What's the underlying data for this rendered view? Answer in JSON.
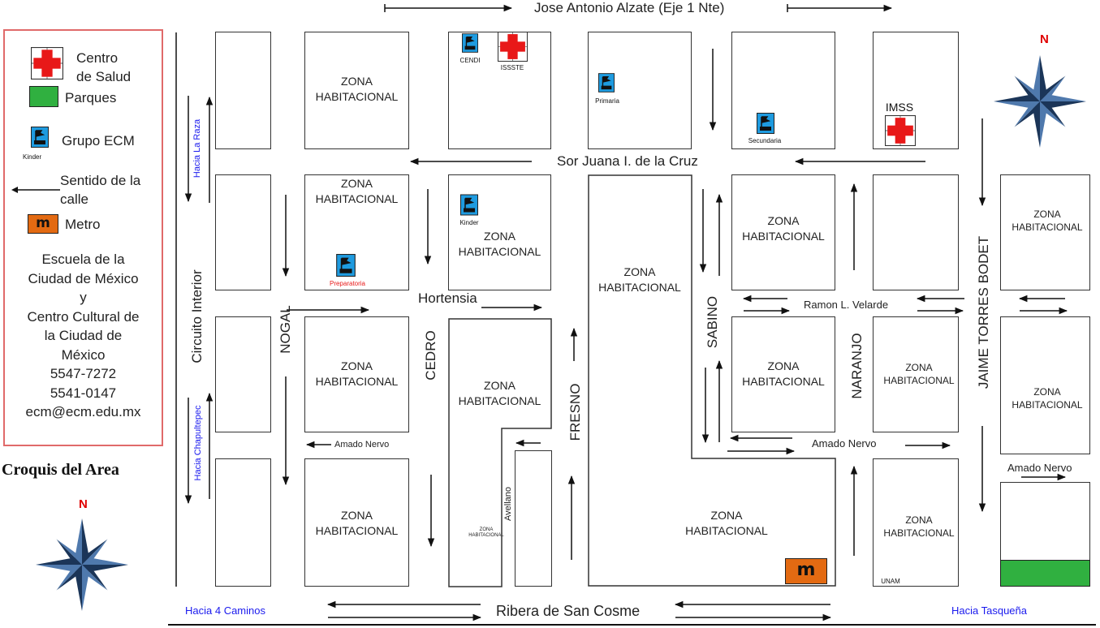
{
  "legend": {
    "health_center": "Centro\nde Salud",
    "parks": "Parques",
    "ecm_group": "Grupo ECM",
    "ecm_icon_caption": "Kinder",
    "street_direction": "Sentido de la\ncalle",
    "metro_label": "Metro",
    "metro_glyph": "m",
    "info": [
      "Escuela de la",
      "Ciudad de México",
      "y",
      "Centro Cultural de",
      "la Ciudad de",
      "México",
      "5547-7272",
      "5541-0147",
      "ecm@ecm.edu.mx"
    ]
  },
  "title": "Croquis del Area",
  "compass_north": "N",
  "streets": {
    "top": "Jose Antonio Alzate (Eje 1 Nte)",
    "sor_juana": "Sor Juana I. de la Cruz",
    "hortensia": "Hortensia",
    "ramon": "Ramon L. Velarde",
    "amado_nervo_left": "Amado Nervo",
    "amado_nervo_mid": "Amado Nervo",
    "amado_nervo_right": "Amado Nervo",
    "ribera": "Ribera de San Cosme",
    "hacia_4_caminos": "Hacia 4 Caminos",
    "hacia_tasquena": "Hacia Tasqueña",
    "circuito": "Circuito Interior",
    "hacia_la_raza": "Hacia La Raza",
    "hacia_chapultepec": "Hacia Chapultepec",
    "nogal": "NOGAL",
    "cedro": "CEDRO",
    "fresno": "FRESNO",
    "sabino": "SABINO",
    "naranjo": "NARANJO",
    "jaime": "JAIME TORRES BODET",
    "avellano": "Avellano"
  },
  "zones": {
    "zh": "ZONA\nHABITACIONAL"
  },
  "places": {
    "cendi": "CENDI",
    "issste": "ISSSTE",
    "primaria": "Primaria",
    "secundaria": "Secundaria",
    "imss": "IMSS",
    "kinder": "Kinder",
    "preparatoria": "Preparatoria",
    "unam": "UNAM"
  },
  "colors": {
    "health_cross": "#e81818",
    "park_green": "#30b040",
    "ecm_blue": "#1e9be0",
    "metro_orange": "#e36a12",
    "compass_navy": "#1b3558",
    "legend_border": "#e06a6a"
  }
}
